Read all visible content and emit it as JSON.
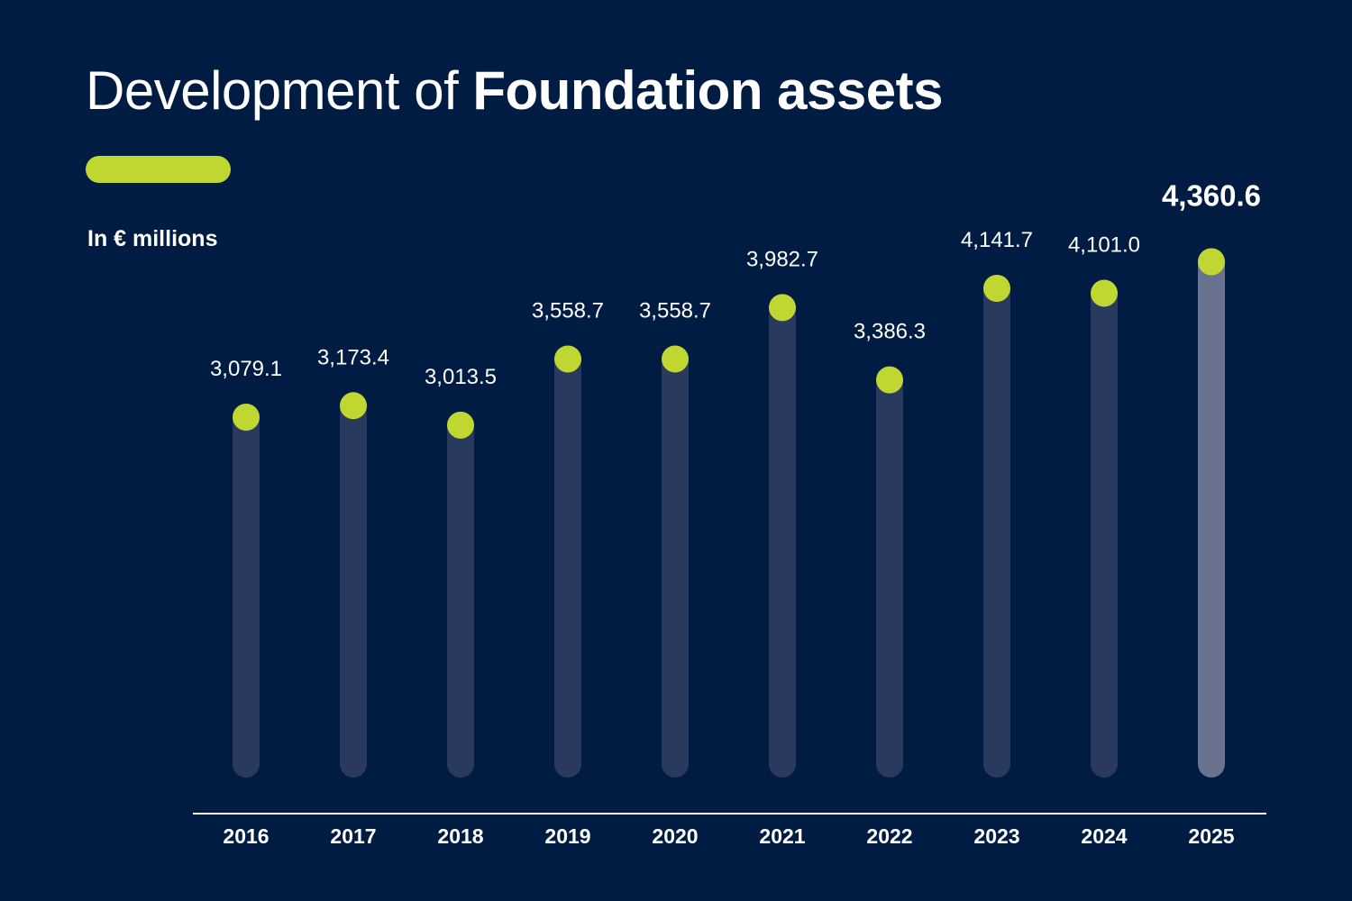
{
  "header": {
    "title_regular": "Development of ",
    "title_bold": "Foundation assets",
    "unit_label": "In € millions"
  },
  "colors": {
    "background": "#001c43",
    "accent": "#c0d732",
    "bar": "#2a3a5f",
    "bar_highlight": "#69738f",
    "text": "#ffffff"
  },
  "chart_data": {
    "type": "bar",
    "title": "Development of Foundation assets",
    "ylabel": "In € millions",
    "xlabel": "",
    "categories": [
      "2016",
      "2017",
      "2018",
      "2019",
      "2020",
      "2021",
      "2022",
      "2023",
      "2024",
      "2025"
    ],
    "values": [
      3079.1,
      3173.4,
      3013.5,
      3558.7,
      3558.7,
      3982.7,
      3386.3,
      4141.7,
      4101.0,
      4360.6
    ],
    "value_labels": [
      "3,079.1",
      "3,173.4",
      "3,013.5",
      "3,558.7",
      "3,558.7",
      "3,982.7",
      "3,386.3",
      "4,141.7",
      "4,101.0",
      "4,360.6"
    ],
    "highlight_index": 9,
    "grid": false,
    "legend": "none"
  }
}
